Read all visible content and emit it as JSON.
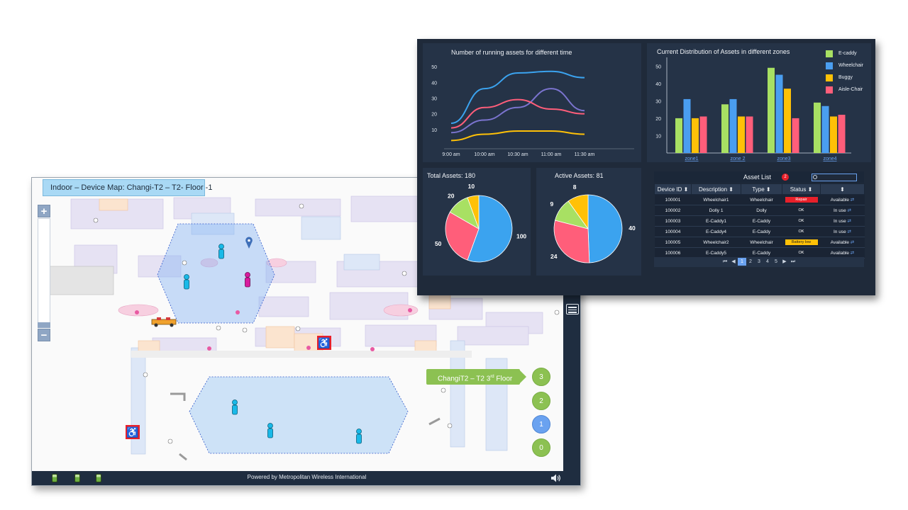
{
  "map": {
    "title": "Indoor – Device Map:  Changi-T2 – T2- Floor -1",
    "zoom_in": "+",
    "zoom_out": "−",
    "footer": "Powered by Metropolitan Wireless International",
    "floor_label_prefix": "ChangiT2 – T2 3",
    "floor_label_sup": "rd",
    "floor_label_suffix": " Floor",
    "floors": [
      "3",
      "2",
      "1",
      "0"
    ],
    "active_floor": "1",
    "icons": [
      "battery-icon",
      "speaker-icon",
      "list-icon",
      "accessibility-icon",
      "person-marker-icon",
      "location-pin-icon",
      "buggy-icon"
    ],
    "colors": {
      "zone_fill": "#8ab6f5",
      "person": "#19b9e8",
      "person_alt": "#d81b9e",
      "floor_green": "#8cc152",
      "floor_active": "#6aa2f0"
    }
  },
  "dashboard": {
    "line_chart": {
      "title": "Number of running assets for different time",
      "x_ticks": [
        "9:00 am",
        "10:00 am",
        "10:30 am",
        "11:00 am",
        "11:30 am"
      ],
      "y_ticks": [
        "50",
        "40",
        "30",
        "20",
        "10"
      ]
    },
    "bar_chart": {
      "title": "Current Distribution of Assets in different zones",
      "y_ticks": [
        "50",
        "40",
        "30",
        "20",
        "10"
      ]
    },
    "total_assets": {
      "title": "Total Assets: 180"
    },
    "active_assets": {
      "title": "Active Assets: 81"
    },
    "asset_list": {
      "title": "Asset List",
      "badge": "2",
      "columns": [
        "Device ID",
        "Description",
        "Type",
        "Status",
        ""
      ],
      "rows": [
        {
          "id": "100001",
          "description": "Wheelchair1",
          "type": "Wheelchair",
          "status": "Repair",
          "state": "Available"
        },
        {
          "id": "100002",
          "description": "Dolly 1",
          "type": "Dolly",
          "status": "OK",
          "state": "In use"
        },
        {
          "id": "100003",
          "description": "E-Caddy1",
          "type": "E-Caddy",
          "status": "OK",
          "state": "In use"
        },
        {
          "id": "100004",
          "description": "E-Caddy4",
          "type": "E-Caddy",
          "status": "OK",
          "state": "In use"
        },
        {
          "id": "100005",
          "description": "Wheelchair2",
          "type": "Wheelchair",
          "status": "Battery low",
          "state": "Available"
        },
        {
          "id": "100006",
          "description": "E-Caddy5",
          "type": "E-Caddy",
          "status": "OK",
          "state": "Available"
        }
      ],
      "pager": [
        "⏮",
        "◀",
        "1",
        "2",
        "3",
        "4",
        "5",
        "▶",
        "⏭"
      ],
      "active_page": "1"
    }
  },
  "chart_data": [
    {
      "type": "line",
      "title": "Number of running assets for different time",
      "x": [
        "9:00 am",
        "10:00 am",
        "10:30 am",
        "11:00 am",
        "11:30 am"
      ],
      "ylim": [
        0,
        55
      ],
      "series": [
        {
          "color": "#3ba3ef",
          "values": [
            14,
            36,
            46,
            47,
            43
          ]
        },
        {
          "color": "#7b74cf",
          "values": [
            8,
            16,
            24,
            36,
            22
          ]
        },
        {
          "color": "#ff5e7a",
          "values": [
            11,
            24,
            29,
            23,
            20
          ]
        },
        {
          "color": "#ffc107",
          "values": [
            3,
            7,
            9,
            9,
            7
          ]
        }
      ]
    },
    {
      "type": "bar",
      "title": "Current Distribution of Assets in different zones",
      "categories": [
        "zone1",
        "zone 2",
        "zone3",
        "zone4"
      ],
      "ylim": [
        0,
        55
      ],
      "series": [
        {
          "name": "E-caddy",
          "color": "#a8e063",
          "values": [
            20,
            28,
            49,
            29
          ]
        },
        {
          "name": "Wheelchair",
          "color": "#4a9ef0",
          "values": [
            31,
            31,
            45,
            27
          ]
        },
        {
          "name": "Buggy",
          "color": "#ffc107",
          "values": [
            20,
            21,
            37,
            21
          ]
        },
        {
          "name": "Aisle-Chair",
          "color": "#ff5e7a",
          "values": [
            21,
            21,
            20,
            22
          ]
        }
      ]
    },
    {
      "type": "pie",
      "title": "Total Assets: 180",
      "values": [
        100,
        50,
        20,
        10
      ],
      "labels": [
        "100",
        "50",
        "20",
        "10"
      ],
      "colors": [
        "#3ba3ef",
        "#ff5e7a",
        "#a8e063",
        "#ffc107"
      ]
    },
    {
      "type": "pie",
      "title": "Active Assets: 81",
      "values": [
        40,
        24,
        9,
        8
      ],
      "labels": [
        "40",
        "24",
        "9",
        "8"
      ],
      "colors": [
        "#3ba3ef",
        "#ff5e7a",
        "#a8e063",
        "#ffc107"
      ]
    }
  ]
}
